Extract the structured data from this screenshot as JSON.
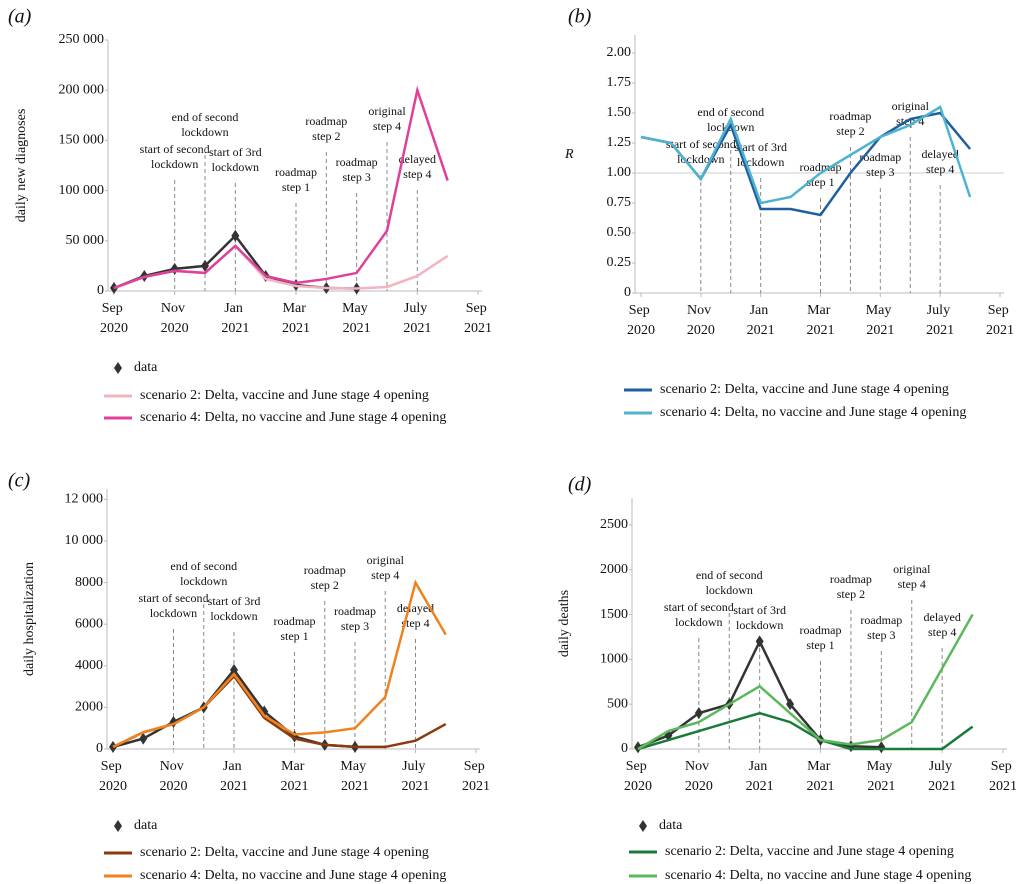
{
  "chart_data": [
    {
      "type": "line",
      "panel": "(a)",
      "ylabel": "daily new diagnoses",
      "x": [
        "2020-09",
        "2020-10",
        "2020-11",
        "2020-12",
        "2021-01",
        "2021-02",
        "2021-03",
        "2021-04",
        "2021-05",
        "2021-06",
        "2021-07",
        "2021-08"
      ],
      "xlim": [
        "2020-09",
        "2021-09"
      ],
      "xticks": [
        {
          "value": "2020-09",
          "label": "Sep 2020"
        },
        {
          "value": "2020-11",
          "label": "Nov 2020"
        },
        {
          "value": "2021-01",
          "label": "Jan 2021"
        },
        {
          "value": "2021-03",
          "label": "Mar 2021"
        },
        {
          "value": "2021-05",
          "label": "May 2021"
        },
        {
          "value": "2021-07",
          "label": "July 2021"
        },
        {
          "value": "2021-09",
          "label": "Sep 2021"
        }
      ],
      "ylim": [
        0,
        250000
      ],
      "yticks": [
        0,
        {
          "value": 50000,
          "label": "50 000"
        },
        {
          "value": 100000,
          "label": "100 000"
        },
        {
          "value": 150000,
          "label": "150 000"
        },
        {
          "value": 200000,
          "label": "200 000"
        },
        {
          "value": 250000,
          "label": "250 000"
        }
      ],
      "series": [
        {
          "name": "data",
          "color": "#333333",
          "marker": "diamond",
          "values": [
            3000,
            15000,
            22000,
            25000,
            55000,
            15000,
            6000,
            3000,
            2500,
            null,
            null,
            null
          ]
        },
        {
          "name": "scenario 2: Delta, vaccine and June stage 4 opening",
          "color": "#f4b3c0",
          "values": [
            3000,
            14000,
            20000,
            18000,
            45000,
            12000,
            5000,
            3000,
            2500,
            4000,
            15000,
            35000
          ]
        },
        {
          "name": "scenario 4: Delta, no vaccine and June stage 4 opening",
          "color": "#e0409a",
          "values": [
            3000,
            14000,
            20000,
            18000,
            45000,
            15000,
            8000,
            12000,
            18000,
            60000,
            200000,
            110000
          ]
        }
      ],
      "annotations": [
        {
          "x": "2020-11",
          "label": [
            "start of second",
            "lockdown"
          ]
        },
        {
          "x": "2020-12",
          "label": [
            "end of second",
            "lockdown"
          ]
        },
        {
          "x": "2021-01",
          "label": [
            "start of 3rd",
            "lockdown"
          ]
        },
        {
          "x": "2021-03",
          "label": [
            "roadmap",
            "step 1"
          ]
        },
        {
          "x": "2021-04",
          "label": [
            "roadmap",
            "step 2"
          ]
        },
        {
          "x": "2021-05",
          "label": [
            "roadmap",
            "step 3"
          ]
        },
        {
          "x": "2021-06",
          "label": [
            "original",
            "step 4"
          ]
        },
        {
          "x": "2021-07",
          "label": [
            "delayed",
            "step 4"
          ]
        }
      ]
    },
    {
      "type": "line",
      "panel": "(b)",
      "ylabel": "R",
      "x": [
        "2020-09",
        "2020-10",
        "2020-11",
        "2020-12",
        "2021-01",
        "2021-02",
        "2021-03",
        "2021-04",
        "2021-05",
        "2021-06",
        "2021-07",
        "2021-08"
      ],
      "xlim": [
        "2020-09",
        "2021-09"
      ],
      "xticks": [
        {
          "value": "2020-09",
          "label": "Sep 2020"
        },
        {
          "value": "2020-11",
          "label": "Nov 2020"
        },
        {
          "value": "2021-01",
          "label": "Jan 2021"
        },
        {
          "value": "2021-03",
          "label": "Mar 2021"
        },
        {
          "value": "2021-05",
          "label": "May 2021"
        },
        {
          "value": "2021-07",
          "label": "July 2021"
        },
        {
          "value": "2021-09",
          "label": "Sep 2021"
        }
      ],
      "ylim": [
        0,
        2.15
      ],
      "yticks": [
        0,
        0.25,
        {
          "value": 0.5,
          "label": "0.50"
        },
        0.75,
        {
          "value": 1,
          "label": "1.00"
        },
        1.25,
        {
          "value": 1.5,
          "label": "1.50"
        },
        1.75,
        {
          "value": 2,
          "label": "2.00"
        }
      ],
      "reference_line": 1,
      "series": [
        {
          "name": "scenario 2: Delta, vaccine and June stage 4 opening",
          "color": "#1f5fa0",
          "values": [
            1.3,
            1.25,
            0.95,
            1.4,
            0.7,
            0.7,
            0.65,
            1.0,
            1.3,
            1.45,
            1.5,
            1.2
          ]
        },
        {
          "name": "scenario 4: Delta, no vaccine and June stage 4 opening",
          "color": "#4fb3cf",
          "values": [
            1.3,
            1.25,
            0.95,
            1.45,
            0.75,
            0.8,
            1.0,
            1.15,
            1.3,
            1.4,
            1.55,
            0.8
          ]
        }
      ],
      "annotations": [
        {
          "x": "2020-11",
          "label": [
            "start of second",
            "lockdown"
          ]
        },
        {
          "x": "2020-12",
          "label": [
            "end of second",
            "lockdown"
          ]
        },
        {
          "x": "2021-01",
          "label": [
            "start of 3rd",
            "lockdown"
          ]
        },
        {
          "x": "2021-03",
          "label": [
            "roadmap",
            "step 1"
          ]
        },
        {
          "x": "2021-04",
          "label": [
            "roadmap",
            "step 2"
          ]
        },
        {
          "x": "2021-05",
          "label": [
            "roadmap",
            "step 3"
          ]
        },
        {
          "x": "2021-06",
          "label": [
            "original",
            "step 4"
          ]
        },
        {
          "x": "2021-07",
          "label": [
            "delayed",
            "step 4"
          ]
        }
      ]
    },
    {
      "type": "line",
      "panel": "(c)",
      "ylabel": "daily hospitalization",
      "x": [
        "2020-09",
        "2020-10",
        "2020-11",
        "2020-12",
        "2021-01",
        "2021-02",
        "2021-03",
        "2021-04",
        "2021-05",
        "2021-06",
        "2021-07",
        "2021-08"
      ],
      "xlim": [
        "2020-09",
        "2021-09"
      ],
      "xticks": [
        {
          "value": "2020-09",
          "label": "Sep 2020"
        },
        {
          "value": "2020-11",
          "label": "Nov 2020"
        },
        {
          "value": "2021-01",
          "label": "Jan 2021"
        },
        {
          "value": "2021-03",
          "label": "Mar 2021"
        },
        {
          "value": "2021-05",
          "label": "May 2021"
        },
        {
          "value": "2021-07",
          "label": "July 2021"
        },
        {
          "value": "2021-09",
          "label": "Sep 2021"
        }
      ],
      "ylim": [
        0,
        12500
      ],
      "yticks": [
        0,
        2000,
        4000,
        6000,
        8000,
        {
          "value": 10000,
          "label": "10 000"
        },
        {
          "value": 12000,
          "label": "12 000"
        }
      ],
      "series": [
        {
          "name": "data",
          "color": "#333333",
          "marker": "diamond",
          "values": [
            100,
            500,
            1300,
            2000,
            3800,
            1800,
            600,
            200,
            100,
            null,
            null,
            null
          ]
        },
        {
          "name": "scenario 2: Delta, vaccine and June stage 4 opening",
          "color": "#8b3a0f",
          "values": [
            100,
            800,
            1200,
            2000,
            3500,
            1500,
            500,
            200,
            100,
            100,
            400,
            1200
          ]
        },
        {
          "name": "scenario 4: Delta, no vaccine and June stage 4 opening",
          "color": "#f0821e",
          "values": [
            100,
            800,
            1200,
            2000,
            3600,
            1600,
            700,
            800,
            1000,
            2500,
            8000,
            5500
          ]
        }
      ],
      "annotations": [
        {
          "x": "2020-11",
          "label": [
            "start of second",
            "lockdown"
          ]
        },
        {
          "x": "2020-12",
          "label": [
            "end of second",
            "lockdown"
          ]
        },
        {
          "x": "2021-01",
          "label": [
            "start of 3rd",
            "lockdown"
          ]
        },
        {
          "x": "2021-03",
          "label": [
            "roadmap",
            "step 1"
          ]
        },
        {
          "x": "2021-04",
          "label": [
            "roadmap",
            "step 2"
          ]
        },
        {
          "x": "2021-05",
          "label": [
            "roadmap",
            "step 3"
          ]
        },
        {
          "x": "2021-06",
          "label": [
            "original",
            "step 4"
          ]
        },
        {
          "x": "2021-07",
          "label": [
            "delayed",
            "step 4"
          ]
        }
      ]
    },
    {
      "type": "line",
      "panel": "(d)",
      "ylabel": "daily deaths",
      "x": [
        "2020-09",
        "2020-10",
        "2020-11",
        "2020-12",
        "2021-01",
        "2021-02",
        "2021-03",
        "2021-04",
        "2021-05",
        "2021-06",
        "2021-07",
        "2021-08"
      ],
      "xlim": [
        "2020-09",
        "2021-09"
      ],
      "xticks": [
        {
          "value": "2020-09",
          "label": "Sep 2020"
        },
        {
          "value": "2020-11",
          "label": "Nov 2020"
        },
        {
          "value": "2021-01",
          "label": "Jan 2021"
        },
        {
          "value": "2021-03",
          "label": "Mar 2021"
        },
        {
          "value": "2021-05",
          "label": "May 2021"
        },
        {
          "value": "2021-07",
          "label": "July 2021"
        },
        {
          "value": "2021-09",
          "label": "Sep 2021"
        }
      ],
      "ylim": [
        0,
        2800
      ],
      "yticks": [
        0,
        500,
        1000,
        1500,
        2000,
        2500
      ],
      "series": [
        {
          "name": "data",
          "color": "#333333",
          "marker": "diamond",
          "values": [
            20,
            150,
            400,
            500,
            1200,
            500,
            100,
            30,
            20,
            null,
            null,
            null
          ]
        },
        {
          "name": "scenario 2: Delta, vaccine and June stage 4 opening",
          "color": "#1a7a3a",
          "values": [
            0,
            100,
            200,
            300,
            400,
            300,
            100,
            0,
            0,
            0,
            0,
            250
          ]
        },
        {
          "name": "scenario 4: Delta, no vaccine and June stage 4 opening",
          "color": "#5cb85c",
          "values": [
            0,
            200,
            300,
            500,
            700,
            400,
            100,
            50,
            100,
            300,
            900,
            1500
          ]
        }
      ],
      "annotations": [
        {
          "x": "2020-11",
          "label": [
            "start of second",
            "lockdown"
          ]
        },
        {
          "x": "2020-12",
          "label": [
            "end of second",
            "lockdown"
          ]
        },
        {
          "x": "2021-01",
          "label": [
            "start of 3rd",
            "lockdown"
          ]
        },
        {
          "x": "2021-03",
          "label": [
            "roadmap",
            "step 1"
          ]
        },
        {
          "x": "2021-04",
          "label": [
            "roadmap",
            "step 2"
          ]
        },
        {
          "x": "2021-05",
          "label": [
            "roadmap",
            "step 3"
          ]
        },
        {
          "x": "2021-06",
          "label": [
            "original",
            "step 4"
          ]
        },
        {
          "x": "2021-07",
          "label": [
            "delayed",
            "step 4"
          ]
        }
      ]
    }
  ]
}
